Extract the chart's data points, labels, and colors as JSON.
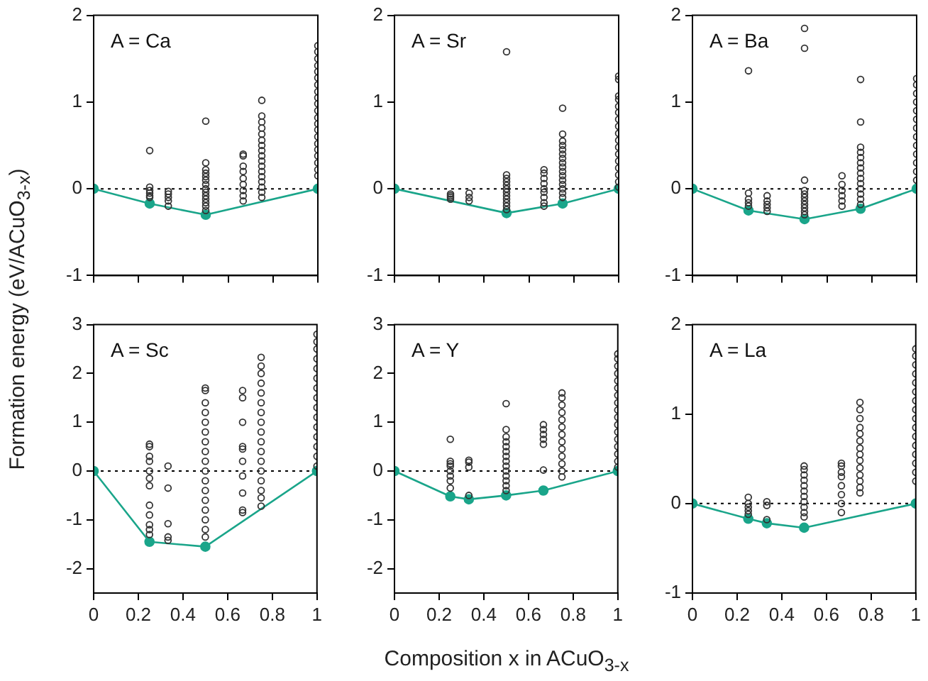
{
  "chart_data": [
    {
      "type": "scatter",
      "title": "A = Ca",
      "ylabel": "Formation energy (eV/ACuO$_{3-x}$)",
      "xlim": [
        0,
        1
      ],
      "xticks": [
        0,
        0.2,
        0.4,
        0.6,
        0.8,
        1
      ],
      "ylim": [
        -1,
        2
      ],
      "yticks": [
        -1,
        0,
        1,
        2
      ],
      "tick_labels": "y",
      "ref_lines": [
        {
          "axis": "y",
          "value": 0,
          "line_style": "dotted",
          "color": "#000000"
        }
      ],
      "series": [
        {
          "type": "scatter",
          "color": "#333333",
          "marker": "circle",
          "x": [
            0.25,
            0.25,
            0.25,
            0.25,
            0.25,
            0.25,
            0.333,
            0.333,
            0.333,
            0.333,
            0.333,
            0.5,
            0.5,
            0.5,
            0.5,
            0.5,
            0.5,
            0.5,
            0.5,
            0.5,
            0.5,
            0.5,
            0.5,
            0.5,
            0.5,
            0.667,
            0.667,
            0.667,
            0.667,
            0.667,
            0.667,
            0.667,
            0.667,
            0.667,
            0.75,
            0.75,
            0.75,
            0.75,
            0.75,
            0.75,
            0.75,
            0.75,
            0.75,
            0.75,
            0.75,
            0.75,
            0.75,
            0.75,
            0.75,
            0.75,
            0.75,
            1,
            1,
            1,
            1,
            1,
            1,
            1,
            1,
            1,
            1,
            1,
            1,
            1,
            1,
            1,
            1,
            1,
            1,
            1,
            1,
            1
          ],
          "values": [
            0.44,
            0.02,
            -0.02,
            -0.05,
            -0.08,
            -0.1,
            -0.03,
            -0.06,
            -0.1,
            -0.14,
            -0.2,
            0.78,
            0.3,
            0.22,
            0.18,
            0.14,
            0.1,
            0.05,
            0,
            -0.04,
            -0.08,
            -0.12,
            -0.16,
            -0.2,
            -0.25,
            0.4,
            0.38,
            0.26,
            0.2,
            0.12,
            0.05,
            -0.02,
            -0.08,
            -0.14,
            1.02,
            0.84,
            0.77,
            0.7,
            0.63,
            0.56,
            0.5,
            0.44,
            0.38,
            0.32,
            0.26,
            0.2,
            0.14,
            0.08,
            0.02,
            -0.04,
            -0.1,
            1.65,
            1.58,
            1.5,
            1.42,
            1.35,
            1.28,
            1.2,
            1.12,
            1.05,
            0.98,
            0.9,
            0.82,
            0.75,
            0.68,
            0.6,
            0.52,
            0.45,
            0.38,
            0.3,
            0.22,
            0.15
          ]
        },
        {
          "type": "line",
          "color": "#1aa58a",
          "marker": "circle",
          "x": [
            0,
            0.25,
            0.5,
            1
          ],
          "values": [
            0,
            -0.17,
            -0.3,
            0
          ]
        }
      ]
    },
    {
      "type": "scatter",
      "title": "A = Sr",
      "xlim": [
        0,
        1
      ],
      "xticks": [
        0,
        0.2,
        0.4,
        0.6,
        0.8,
        1
      ],
      "ylim": [
        -1,
        2
      ],
      "yticks": [
        -1,
        0,
        1,
        2
      ],
      "tick_labels": "y",
      "ref_lines": [
        {
          "axis": "y",
          "value": 0,
          "line_style": "dotted",
          "color": "#000000"
        }
      ],
      "series": [
        {
          "type": "scatter",
          "color": "#333333",
          "marker": "circle",
          "x": [
            0.25,
            0.25,
            0.25,
            0.25,
            0.333,
            0.333,
            0.333,
            0.5,
            0.5,
            0.5,
            0.5,
            0.5,
            0.5,
            0.5,
            0.5,
            0.5,
            0.5,
            0.5,
            0.5,
            0.667,
            0.667,
            0.667,
            0.667,
            0.667,
            0.667,
            0.667,
            0.667,
            0.667,
            0.75,
            0.75,
            0.75,
            0.75,
            0.75,
            0.75,
            0.75,
            0.75,
            0.75,
            0.75,
            0.75,
            0.75,
            0.75,
            0.75,
            0.75,
            0.75,
            1,
            1,
            1,
            1,
            1,
            1,
            1,
            1,
            1,
            1,
            1,
            1,
            1,
            1,
            1,
            1,
            1
          ],
          "values": [
            -0.06,
            -0.08,
            -0.1,
            -0.12,
            -0.05,
            -0.1,
            -0.14,
            1.58,
            0.16,
            0.12,
            0.08,
            0.04,
            0,
            -0.04,
            -0.08,
            -0.12,
            -0.16,
            -0.2,
            -0.24,
            0.22,
            0.18,
            0.12,
            0.06,
            0,
            -0.04,
            -0.1,
            -0.16,
            -0.2,
            0.93,
            0.63,
            0.55,
            0.5,
            0.45,
            0.4,
            0.35,
            0.3,
            0.25,
            0.2,
            0.15,
            0.1,
            0.05,
            0,
            -0.05,
            -0.1,
            1.3,
            1.26,
            1.07,
            1.03,
            0.95,
            0.88,
            0.8,
            0.72,
            0.64,
            0.56,
            0.48,
            0.4,
            0.32,
            0.24,
            0.16,
            0.08,
            0.02
          ]
        },
        {
          "type": "line",
          "color": "#1aa58a",
          "marker": "circle",
          "x": [
            0,
            0.5,
            0.75,
            1
          ],
          "values": [
            0,
            -0.28,
            -0.17,
            0
          ]
        }
      ]
    },
    {
      "type": "scatter",
      "title": "A = Ba",
      "xlim": [
        0,
        1
      ],
      "xticks": [
        0,
        0.2,
        0.4,
        0.6,
        0.8,
        1
      ],
      "ylim": [
        -1,
        2
      ],
      "yticks": [
        -1,
        0,
        1,
        2
      ],
      "tick_labels": "y",
      "ref_lines": [
        {
          "axis": "y",
          "value": 0,
          "line_style": "dotted",
          "color": "#000000"
        }
      ],
      "series": [
        {
          "type": "scatter",
          "color": "#333333",
          "marker": "circle",
          "x": [
            0.25,
            0.25,
            0.25,
            0.25,
            0.25,
            0.333,
            0.333,
            0.333,
            0.333,
            0.333,
            0.5,
            0.5,
            0.5,
            0.5,
            0.5,
            0.5,
            0.5,
            0.5,
            0.5,
            0.5,
            0.5,
            0.667,
            0.667,
            0.667,
            0.667,
            0.667,
            0.667,
            0.75,
            0.75,
            0.75,
            0.75,
            0.75,
            0.75,
            0.75,
            0.75,
            0.75,
            0.75,
            0.75,
            0.75,
            0.75,
            0.75,
            1,
            1,
            1,
            1,
            1,
            1,
            1,
            1,
            1,
            1,
            1,
            1,
            1
          ],
          "values": [
            1.36,
            -0.05,
            -0.12,
            -0.16,
            -0.2,
            -0.08,
            -0.14,
            -0.18,
            -0.22,
            -0.26,
            1.85,
            1.62,
            0.1,
            -0.02,
            -0.06,
            -0.1,
            -0.14,
            -0.18,
            -0.22,
            -0.26,
            -0.3,
            0.15,
            0.05,
            -0.02,
            -0.08,
            -0.14,
            -0.2,
            1.26,
            0.77,
            0.48,
            0.42,
            0.36,
            0.3,
            0.24,
            0.18,
            0.12,
            0.06,
            0,
            -0.06,
            -0.12,
            -0.18,
            1.27,
            1.2,
            1.1,
            1,
            0.9,
            0.8,
            0.7,
            0.6,
            0.5,
            0.4,
            0.3,
            0.2,
            0.1
          ]
        },
        {
          "type": "line",
          "color": "#1aa58a",
          "marker": "circle",
          "x": [
            0,
            0.25,
            0.5,
            0.75,
            1
          ],
          "values": [
            0,
            -0.25,
            -0.35,
            -0.23,
            0
          ]
        }
      ]
    },
    {
      "type": "scatter",
      "title": "A = Sc",
      "xlim": [
        0,
        1
      ],
      "xticks": [
        0,
        0.2,
        0.4,
        0.6,
        0.8,
        1
      ],
      "ylim": [
        -2.5,
        3
      ],
      "yticks": [
        -2,
        -1,
        0,
        1,
        2,
        3
      ],
      "ref_lines": [
        {
          "axis": "y",
          "value": 0,
          "line_style": "dotted",
          "color": "#000000"
        }
      ],
      "series": [
        {
          "type": "scatter",
          "color": "#333333",
          "marker": "circle",
          "x": [
            0.25,
            0.25,
            0.25,
            0.25,
            0.25,
            0.25,
            0.25,
            0.25,
            0.25,
            0.25,
            0.25,
            0.25,
            0.333,
            0.333,
            0.333,
            0.333,
            0.333,
            0.5,
            0.5,
            0.5,
            0.5,
            0.5,
            0.5,
            0.5,
            0.5,
            0.5,
            0.5,
            0.5,
            0.5,
            0.5,
            0.5,
            0.5,
            0.5,
            0.5,
            0.667,
            0.667,
            0.667,
            0.667,
            0.667,
            0.667,
            0.667,
            0.667,
            0.667,
            0.667,
            0.75,
            0.75,
            0.75,
            0.75,
            0.75,
            0.75,
            0.75,
            0.75,
            0.75,
            0.75,
            0.75,
            0.75,
            0.75,
            0.75,
            0.75,
            0.75,
            0.75,
            1,
            1,
            1,
            1,
            1,
            1,
            1,
            1,
            1,
            1,
            1,
            1,
            1,
            1,
            1
          ],
          "values": [
            0.55,
            0.5,
            0.3,
            0.2,
            0,
            -0.15,
            -0.3,
            -0.7,
            -0.9,
            -1.1,
            -1.2,
            -1.3,
            0.1,
            -0.35,
            -1.08,
            -1.35,
            -1.42,
            1.7,
            1.65,
            1.4,
            1.2,
            1,
            0.8,
            0.6,
            0.4,
            0.2,
            0,
            -0.2,
            -0.4,
            -0.6,
            -0.8,
            -1,
            -1.2,
            -1.35,
            1.65,
            1.5,
            1,
            0.5,
            0.45,
            0.2,
            -0.1,
            -0.45,
            -0.8,
            -0.85,
            2.33,
            2.15,
            2,
            1.8,
            1.6,
            1.4,
            1.2,
            1,
            0.8,
            0.6,
            0.4,
            0.2,
            0,
            -0.2,
            -0.4,
            -0.55,
            -0.72,
            2.8,
            2.65,
            2.5,
            2.3,
            2.1,
            1.9,
            1.7,
            1.5,
            1.3,
            1.1,
            0.9,
            0.7,
            0.5,
            0.3,
            0.1
          ]
        },
        {
          "type": "line",
          "color": "#1aa58a",
          "marker": "circle",
          "x": [
            0,
            0.25,
            0.5,
            1
          ],
          "values": [
            0,
            -1.45,
            -1.55,
            0
          ]
        }
      ]
    },
    {
      "type": "scatter",
      "title": "A = Y",
      "xlabel": "Composition x in ACuO$_{3-x}$",
      "xlim": [
        0,
        1
      ],
      "xticks": [
        0,
        0.2,
        0.4,
        0.6,
        0.8,
        1
      ],
      "ylim": [
        -2.5,
        3
      ],
      "yticks": [
        -2,
        -1,
        0,
        1,
        2,
        3
      ],
      "ref_lines": [
        {
          "axis": "y",
          "value": 0,
          "line_style": "dotted",
          "color": "#000000"
        }
      ],
      "series": [
        {
          "type": "scatter",
          "color": "#333333",
          "marker": "circle",
          "x": [
            0.25,
            0.25,
            0.25,
            0.25,
            0.25,
            0.25,
            0.25,
            0.25,
            0.333,
            0.333,
            0.333,
            0.333,
            0.5,
            0.5,
            0.5,
            0.5,
            0.5,
            0.5,
            0.5,
            0.5,
            0.5,
            0.5,
            0.5,
            0.5,
            0.5,
            0.5,
            0.667,
            0.667,
            0.667,
            0.667,
            0.667,
            0.667,
            0.75,
            0.75,
            0.75,
            0.75,
            0.75,
            0.75,
            0.75,
            0.75,
            0.75,
            0.75,
            0.75,
            0.75,
            0.75,
            1,
            1,
            1,
            1,
            1,
            1,
            1,
            1,
            1,
            1,
            1,
            1,
            1,
            1,
            1,
            1,
            1
          ],
          "values": [
            0.65,
            0.2,
            0.15,
            0.1,
            0,
            -0.1,
            -0.2,
            -0.35,
            0.22,
            0.18,
            0.08,
            -0.5,
            1.38,
            0.85,
            0.7,
            0.6,
            0.5,
            0.4,
            0.3,
            0.2,
            0.1,
            0,
            -0.1,
            -0.2,
            -0.3,
            -0.4,
            0.95,
            0.85,
            0.75,
            0.65,
            0.55,
            0.02,
            1.6,
            1.5,
            1.35,
            1.2,
            1.05,
            0.9,
            0.75,
            0.6,
            0.45,
            0.3,
            0.15,
            0,
            -0.12,
            2.4,
            2.3,
            2.15,
            2,
            1.85,
            1.7,
            1.55,
            1.4,
            1.25,
            1.1,
            0.95,
            0.8,
            0.65,
            0.5,
            0.35,
            0.2,
            0.08
          ]
        },
        {
          "type": "line",
          "color": "#1aa58a",
          "marker": "circle",
          "x": [
            0,
            0.25,
            0.333,
            0.5,
            0.667,
            1
          ],
          "values": [
            0,
            -0.52,
            -0.58,
            -0.5,
            -0.4,
            0
          ]
        }
      ]
    },
    {
      "type": "scatter",
      "title": "A = La",
      "xlim": [
        0,
        1
      ],
      "xticks": [
        0,
        0.2,
        0.4,
        0.6,
        0.8,
        1
      ],
      "ylim": [
        -1,
        2
      ],
      "yticks": [
        -1,
        0,
        1,
        2
      ],
      "ref_lines": [
        {
          "axis": "y",
          "value": 0,
          "line_style": "dotted",
          "color": "#000000"
        }
      ],
      "series": [
        {
          "type": "scatter",
          "color": "#333333",
          "marker": "circle",
          "x": [
            0.25,
            0.25,
            0.25,
            0.25,
            0.25,
            0.333,
            0.333,
            0.333,
            0.5,
            0.5,
            0.5,
            0.5,
            0.5,
            0.5,
            0.5,
            0.5,
            0.5,
            0.5,
            0.5,
            0.667,
            0.667,
            0.667,
            0.667,
            0.667,
            0.667,
            0.667,
            0.667,
            0.75,
            0.75,
            0.75,
            0.75,
            0.75,
            0.75,
            0.75,
            0.75,
            0.75,
            0.75,
            0.75,
            0.75,
            0.75,
            0.75,
            1,
            1,
            1,
            1,
            1,
            1,
            1,
            1,
            1,
            1,
            1,
            1,
            1,
            1,
            1,
            1
          ],
          "values": [
            0.07,
            0,
            -0.04,
            -0.08,
            -0.12,
            0.02,
            -0.02,
            -0.18,
            0.42,
            0.38,
            0.32,
            0.26,
            0.2,
            0.14,
            0.08,
            0.02,
            -0.04,
            -0.1,
            -0.15,
            0.45,
            0.42,
            0.35,
            0.3,
            0.2,
            0.1,
            0,
            -0.1,
            1.13,
            1.05,
            0.95,
            0.85,
            0.78,
            0.7,
            0.62,
            0.55,
            0.48,
            0.4,
            0.32,
            0.25,
            0.18,
            0.12,
            1.73,
            1.65,
            1.55,
            1.45,
            1.35,
            1.25,
            1.15,
            1.05,
            0.95,
            0.85,
            0.75,
            0.65,
            0.55,
            0.45,
            0.35,
            0.25
          ]
        },
        {
          "type": "line",
          "color": "#1aa58a",
          "marker": "circle",
          "x": [
            0,
            0.25,
            0.333,
            0.5,
            1
          ],
          "values": [
            0,
            -0.17,
            -0.22,
            -0.27,
            0
          ]
        }
      ]
    }
  ]
}
